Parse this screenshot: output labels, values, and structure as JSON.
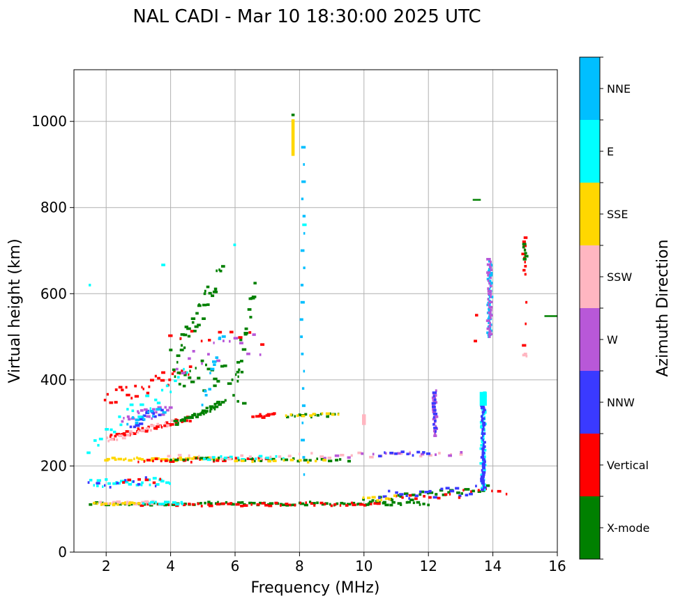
{
  "chart_data": {
    "type": "scatter",
    "title": "NAL CADI - Mar 10 18:30:00 2025 UTC",
    "xlabel": "Frequency (MHz)",
    "ylabel": "Virtual height (km)",
    "xlim": [
      1,
      16
    ],
    "ylim": [
      0,
      1120
    ],
    "xticks": [
      2,
      4,
      6,
      8,
      10,
      12,
      14,
      16
    ],
    "yticks": [
      0,
      200,
      400,
      600,
      800,
      1000
    ],
    "grid": true,
    "colorbar": {
      "title": "Azimuth Direction",
      "categories": [
        {
          "name": "X-mode",
          "color": "#008000"
        },
        {
          "name": "Vertical",
          "color": "#ff0000"
        },
        {
          "name": "NNW",
          "color": "#3a3aff"
        },
        {
          "name": "W",
          "color": "#b858d8"
        },
        {
          "name": "SSW",
          "color": "#ffb6c1"
        },
        {
          "name": "SSE",
          "color": "#ffd700"
        },
        {
          "name": "E",
          "color": "#00ffff"
        },
        {
          "name": "NNE",
          "color": "#00bfff"
        }
      ]
    },
    "traces": [
      {
        "name": "E layer X-mode",
        "category": "X-mode",
        "start": [
          1.5,
          112
        ],
        "end": [
          12.0,
          113
        ],
        "count": 90,
        "jitter": 4
      },
      {
        "name": "E layer Vertical",
        "category": "Vertical",
        "start": [
          3.0,
          110
        ],
        "end": [
          10.5,
          112
        ],
        "count": 50,
        "jitter": 4
      },
      {
        "name": "E layer SSW",
        "category": "SSW",
        "start": [
          1.8,
          113
        ],
        "end": [
          3.5,
          114
        ],
        "count": 20,
        "jitter": 4
      },
      {
        "name": "E layer SSE",
        "category": "SSE",
        "start": [
          1.6,
          112
        ],
        "end": [
          3.0,
          113
        ],
        "count": 15,
        "jitter": 3
      },
      {
        "name": "E layer cyan",
        "category": "E",
        "start": [
          3.2,
          114
        ],
        "end": [
          4.4,
          114
        ],
        "count": 12,
        "jitter": 3
      },
      {
        "name": "Es high-freq X-mode",
        "category": "X-mode",
        "start": [
          10.0,
          116
        ],
        "end": [
          13.8,
          150
        ],
        "count": 30,
        "jitter": 8
      },
      {
        "name": "Es high-freq mixed",
        "category": "NNW",
        "start": [
          10.5,
          130
        ],
        "end": [
          13.5,
          145
        ],
        "count": 20,
        "jitter": 12
      },
      {
        "name": "Es high-freq red",
        "category": "Vertical",
        "start": [
          10.8,
          125
        ],
        "end": [
          14.4,
          142
        ],
        "count": 18,
        "jitter": 10
      },
      {
        "name": "Es high-freq SSE",
        "category": "SSE",
        "start": [
          10.0,
          122
        ],
        "end": [
          11.0,
          130
        ],
        "count": 8,
        "jitter": 6
      },
      {
        "name": "Low E echoes cyan",
        "category": "E",
        "start": [
          1.5,
          160
        ],
        "end": [
          4.0,
          163
        ],
        "count": 25,
        "jitter": 10
      },
      {
        "name": "Low E echoes NNW",
        "category": "NNW",
        "start": [
          1.5,
          155
        ],
        "end": [
          3.5,
          165
        ],
        "count": 10,
        "jitter": 12
      },
      {
        "name": "Low E echoes red",
        "category": "Vertical",
        "start": [
          2.5,
          160
        ],
        "end": [
          3.7,
          168
        ],
        "count": 6,
        "jitter": 6
      },
      {
        "name": "E2 layer mixed",
        "category": "SSE",
        "start": [
          2.0,
          215
        ],
        "end": [
          5.5,
          217
        ],
        "count": 35,
        "jitter": 4
      },
      {
        "name": "E2 layer red",
        "category": "Vertical",
        "start": [
          3.0,
          212
        ],
        "end": [
          7.0,
          215
        ],
        "count": 30,
        "jitter": 5
      },
      {
        "name": "E2 layer X-mode",
        "category": "X-mode",
        "start": [
          4.0,
          215
        ],
        "end": [
          9.5,
          215
        ],
        "count": 30,
        "jitter": 4
      },
      {
        "name": "E2 layer cyan",
        "category": "E",
        "start": [
          5.0,
          218
        ],
        "end": [
          7.5,
          220
        ],
        "count": 15,
        "jitter": 4
      },
      {
        "name": "E2 layer SSW",
        "category": "SSW",
        "start": [
          4.0,
          220
        ],
        "end": [
          13.0,
          228
        ],
        "count": 30,
        "jitter": 6
      },
      {
        "name": "E2 layer W",
        "category": "W",
        "start": [
          8.8,
          222
        ],
        "end": [
          13.0,
          228
        ],
        "count": 12,
        "jitter": 5
      },
      {
        "name": "E2 layer NNW",
        "category": "NNW",
        "start": [
          10.5,
          228
        ],
        "end": [
          12.0,
          230
        ],
        "count": 10,
        "jitter": 5
      },
      {
        "name": "E2 layer gold",
        "category": "SSE",
        "start": [
          6.0,
          210
        ],
        "end": [
          8.8,
          212
        ],
        "count": 12,
        "jitter": 3
      },
      {
        "name": "F trace O lower red",
        "category": "Vertical",
        "start": [
          2.1,
          265
        ],
        "end": [
          4.6,
          310
        ],
        "count": 45,
        "jitter": 6
      },
      {
        "name": "F trace O lower pink",
        "category": "SSW",
        "start": [
          2.0,
          260
        ],
        "end": [
          4.0,
          300
        ],
        "count": 20,
        "jitter": 6
      },
      {
        "name": "F trace O upper red",
        "category": "Vertical",
        "start": [
          2.0,
          355
        ],
        "end": [
          4.6,
          420
        ],
        "count": 30,
        "jitter": 18
      },
      {
        "name": "F trace O upper NNW",
        "category": "NNW",
        "start": [
          2.8,
          300
        ],
        "end": [
          3.8,
          330
        ],
        "count": 18,
        "jitter": 12
      },
      {
        "name": "F trace O upper W",
        "category": "W",
        "start": [
          2.5,
          310
        ],
        "end": [
          4.0,
          330
        ],
        "count": 18,
        "jitter": 12
      },
      {
        "name": "F trace O upper cyan",
        "category": "E",
        "start": [
          1.5,
          250
        ],
        "end": [
          4.5,
          420
        ],
        "count": 25,
        "jitter": 25
      },
      {
        "name": "F trace O upper blue",
        "category": "NNE",
        "start": [
          2.7,
          300
        ],
        "end": [
          3.8,
          330
        ],
        "count": 12,
        "jitter": 10
      },
      {
        "name": "F trace X lower",
        "category": "X-mode",
        "start": [
          4.2,
          300
        ],
        "end": [
          5.6,
          345
        ],
        "count": 40,
        "jitter": 6
      },
      {
        "name": "F trace X upper",
        "category": "X-mode",
        "start": [
          4.0,
          430
        ],
        "end": [
          6.3,
          380
        ],
        "count": 30,
        "jitter": 40
      },
      {
        "name": "F trace X mid",
        "category": "X-mode",
        "start": [
          4.2,
          460
        ],
        "end": [
          5.6,
          650
        ],
        "count": 35,
        "jitter": 25
      },
      {
        "name": "F trace X far",
        "category": "X-mode",
        "start": [
          6.0,
          400
        ],
        "end": [
          6.6,
          610
        ],
        "count": 18,
        "jitter": 20
      },
      {
        "name": "F trace misc W",
        "category": "W",
        "start": [
          4.2,
          440
        ],
        "end": [
          6.8,
          480
        ],
        "count": 15,
        "jitter": 30
      },
      {
        "name": "F trace misc red",
        "category": "Vertical",
        "start": [
          4.0,
          480
        ],
        "end": [
          6.8,
          500
        ],
        "count": 10,
        "jitter": 30
      },
      {
        "name": "F trace misc NNE",
        "category": "NNE",
        "start": [
          5.0,
          350
        ],
        "end": [
          5.6,
          510
        ],
        "count": 12,
        "jitter": 20
      },
      {
        "name": "7 MHz group",
        "category": "Vertical",
        "start": [
          6.6,
          315
        ],
        "end": [
          7.2,
          318
        ],
        "count": 10,
        "jitter": 4
      },
      {
        "name": "8 MHz group",
        "category": "X-mode",
        "start": [
          7.6,
          315
        ],
        "end": [
          9.2,
          318
        ],
        "count": 14,
        "jitter": 4
      },
      {
        "name": "8 MHz group gold",
        "category": "SSE",
        "start": [
          7.6,
          318
        ],
        "end": [
          9.2,
          320
        ],
        "count": 10,
        "jitter": 3
      },
      {
        "name": "Col 8.1 cyan",
        "category": "NNE",
        "start": [
          8.1,
          180
        ],
        "end": [
          8.1,
          940
        ],
        "count": 20,
        "jitter": 0
      },
      {
        "name": "13.7 column cyan",
        "category": "E",
        "start": [
          13.7,
          145
        ],
        "end": [
          13.7,
          370
        ],
        "count": 60,
        "jitter": 0
      },
      {
        "name": "13.7 column blue",
        "category": "NNW",
        "start": [
          13.7,
          145
        ],
        "end": [
          13.7,
          340
        ],
        "count": 40,
        "jitter": 0
      },
      {
        "name": "13.9 column blue",
        "category": "NNE",
        "start": [
          13.9,
          500
        ],
        "end": [
          13.9,
          680
        ],
        "count": 40,
        "jitter": 0
      },
      {
        "name": "13.9 column W",
        "category": "W",
        "start": [
          13.9,
          500
        ],
        "end": [
          13.9,
          680
        ],
        "count": 30,
        "jitter": 0
      },
      {
        "name": "12.2 column",
        "category": "W",
        "start": [
          12.2,
          270
        ],
        "end": [
          12.2,
          375
        ],
        "count": 20,
        "jitter": 0
      },
      {
        "name": "12.2 column blue",
        "category": "NNW",
        "start": [
          12.2,
          280
        ],
        "end": [
          12.2,
          370
        ],
        "count": 12,
        "jitter": 0
      },
      {
        "name": "15 group red",
        "category": "Vertical",
        "start": [
          15.0,
          645
        ],
        "end": [
          15.0,
          730
        ],
        "count": 10,
        "jitter": 0
      },
      {
        "name": "15 group X-mode",
        "category": "X-mode",
        "start": [
          15.0,
          680
        ],
        "end": [
          15.0,
          715
        ],
        "count": 6,
        "jitter": 0
      },
      {
        "name": "15 low",
        "category": "SSW",
        "start": [
          15.0,
          455
        ],
        "end": [
          15.0,
          460
        ],
        "count": 3,
        "jitter": 0
      },
      {
        "name": "15 red low",
        "category": "Vertical",
        "start": [
          15.0,
          480
        ],
        "end": [
          15.0,
          580
        ],
        "count": 3,
        "jitter": 0
      },
      {
        "name": "13.5 red",
        "category": "Vertical",
        "start": [
          13.5,
          490
        ],
        "end": [
          13.5,
          550
        ],
        "count": 2,
        "jitter": 0
      },
      {
        "name": "Misc far echoes",
        "category": "E",
        "start": [
          1.5,
          620
        ],
        "end": [
          8.2,
          760
        ],
        "count": 4,
        "jitter": 0
      }
    ],
    "bars": [
      {
        "category": "SSE",
        "x": 7.8,
        "y0": 920,
        "y1": 1005,
        "width_mhz": 0.1
      },
      {
        "category": "X-mode",
        "x": 7.8,
        "y0": 1012,
        "y1": 1018,
        "width_mhz": 0.1
      },
      {
        "category": "SSW",
        "x": 10.0,
        "y0": 295,
        "y1": 320,
        "width_mhz": 0.12
      },
      {
        "category": "E",
        "x": 13.7,
        "y0": 340,
        "y1": 372,
        "width_mhz": 0.22
      },
      {
        "category": "X-mode",
        "x": 13.5,
        "y0": 816,
        "y1": 820,
        "width_mhz": 0.25
      },
      {
        "category": "X-mode",
        "x": 16.0,
        "y0": 546,
        "y1": 550,
        "width_mhz": 0.4
      }
    ]
  }
}
